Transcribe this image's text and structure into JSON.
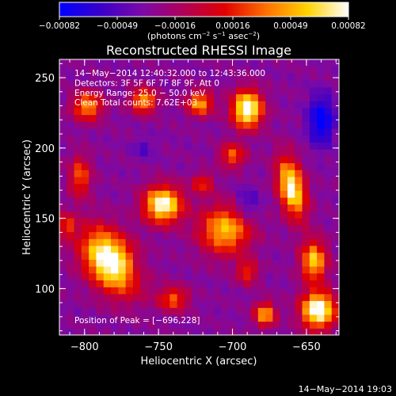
{
  "chart_data": {
    "type": "heatmap",
    "title": "Reconstructed RHESSI Image",
    "xlabel": "Heliocentric X (arcsec)",
    "ylabel": "Heliocentric Y (arcsec)",
    "xlim": [
      -817,
      -628
    ],
    "ylim": [
      67,
      263
    ],
    "xticks": [
      -800,
      -750,
      -700,
      -650
    ],
    "yticks": [
      100,
      150,
      200,
      250
    ],
    "colorbar": {
      "label_parts": [
        "(photons cm",
        "−2",
        " s",
        "−1",
        " asec",
        "−2",
        ")"
      ],
      "range": [
        -0.00082,
        0.00082
      ],
      "ticks": [
        "−0.00082",
        "−0.00049",
        "−0.00016",
        "0.00016",
        "0.00049",
        "0.00082"
      ],
      "stops": [
        "#0000ff",
        "#3a00c8",
        "#7a0aa8",
        "#b0005a",
        "#e00000",
        "#ff7000",
        "#ffd200",
        "#ffffff"
      ]
    },
    "annotations": [
      "14−May−2014 12:40:32.000 to 12:43:36.000",
      "Detectors: 3F 5F 6F 7F 8F 9F, Att 0",
      "Energy Range: 25.0 − 50.0 keV",
      "Clean    Total counts: 7.62E+03"
    ],
    "peak_label": "Position of Peak = [−696,228]",
    "peak": [
      -696,
      228
    ],
    "grid": {
      "nx": 38,
      "ny": 40,
      "background": -0.0003,
      "blobs": [
        {
          "x": -783,
          "y": 120,
          "sx": 11,
          "sy": 17,
          "amp": 0.00125,
          "rot": 0.55
        },
        {
          "x": -747,
          "y": 160,
          "sx": 9,
          "sy": 9,
          "amp": 0.00115
        },
        {
          "x": -690,
          "y": 228,
          "sx": 7,
          "sy": 9,
          "amp": 0.00125
        },
        {
          "x": -722,
          "y": 232,
          "sx": 6,
          "sy": 6,
          "amp": 0.0008
        },
        {
          "x": -760,
          "y": 234,
          "sx": 6,
          "sy": 6,
          "amp": 0.0008
        },
        {
          "x": -798,
          "y": 230,
          "sx": 7,
          "sy": 7,
          "amp": 0.00075
        },
        {
          "x": -803,
          "y": 180,
          "sx": 5,
          "sy": 10,
          "amp": 0.0006
        },
        {
          "x": -660,
          "y": 172,
          "sx": 6,
          "sy": 15,
          "amp": 0.0011,
          "rot": 0.2
        },
        {
          "x": -645,
          "y": 120,
          "sx": 6,
          "sy": 10,
          "amp": 0.0009
        },
        {
          "x": -705,
          "y": 142,
          "sx": 12,
          "sy": 12,
          "amp": 0.00085
        },
        {
          "x": -700,
          "y": 195,
          "sx": 6,
          "sy": 6,
          "amp": 0.0006
        },
        {
          "x": -720,
          "y": 175,
          "sx": 5,
          "sy": 5,
          "amp": 0.0005
        },
        {
          "x": -642,
          "y": 85,
          "sx": 8,
          "sy": 9,
          "amp": 0.00125
        },
        {
          "x": -678,
          "y": 82,
          "sx": 5,
          "sy": 6,
          "amp": 0.0008
        },
        {
          "x": -740,
          "y": 93,
          "sx": 7,
          "sy": 6,
          "amp": 0.0006
        },
        {
          "x": -690,
          "y": 112,
          "sx": 5,
          "sy": 6,
          "amp": 0.0005
        },
        {
          "x": -812,
          "y": 145,
          "sx": 4,
          "sy": 6,
          "amp": 0.0005
        },
        {
          "x": -640,
          "y": 220,
          "sx": 6,
          "sy": 12,
          "amp": -0.0006
        },
        {
          "x": -690,
          "y": 160,
          "sx": 6,
          "sy": 8,
          "amp": -0.0003
        },
        {
          "x": -765,
          "y": 115,
          "sx": 5,
          "sy": 5,
          "amp": -0.0002
        },
        {
          "x": -760,
          "y": 200,
          "sx": 5,
          "sy": 5,
          "amp": -0.0002
        }
      ]
    }
  },
  "footer": {
    "timestamp": "14−May−2014 19:03"
  }
}
